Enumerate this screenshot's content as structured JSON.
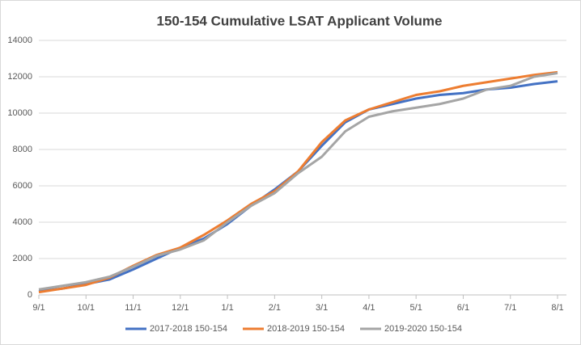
{
  "chart_data": {
    "type": "line",
    "title": "150-154 Cumulative LSAT Applicant Volume",
    "categories": [
      "9/1",
      null,
      "10/1",
      null,
      "11/1",
      null,
      "12/1",
      null,
      "1/1",
      null,
      "2/1",
      null,
      "3/1",
      null,
      "4/1",
      null,
      "5/1",
      null,
      "6/1",
      null,
      "7/1",
      null,
      "8/1"
    ],
    "series": [
      {
        "name": "2017-2018 150-154",
        "color": "#4472c4",
        "values": [
          200,
          350,
          600,
          850,
          1400,
          2000,
          2600,
          3100,
          3900,
          4900,
          5800,
          6800,
          8200,
          9500,
          10200,
          10500,
          10800,
          11000,
          11100,
          11300,
          11400,
          11600,
          11750
        ]
      },
      {
        "name": "2018-2019 150-154",
        "color": "#ed7d31",
        "values": [
          150,
          350,
          550,
          950,
          1600,
          2200,
          2600,
          3300,
          4100,
          5000,
          5700,
          6800,
          8400,
          9600,
          10200,
          10600,
          11000,
          11200,
          11500,
          11700,
          11900,
          12100,
          12250
        ]
      },
      {
        "name": "2019-2020 150-154",
        "color": "#a5a5a5",
        "values": [
          300,
          500,
          700,
          1000,
          1550,
          2150,
          2500,
          3000,
          4000,
          4900,
          5600,
          6700,
          7600,
          9000,
          9800,
          10100,
          10300,
          10500,
          10800,
          11300,
          11500,
          12000,
          12200
        ]
      }
    ],
    "ylim": [
      0,
      14000
    ],
    "yticks": [
      0,
      2000,
      4000,
      6000,
      8000,
      10000,
      12000,
      14000
    ],
    "grid": true,
    "legend": "bottom"
  }
}
